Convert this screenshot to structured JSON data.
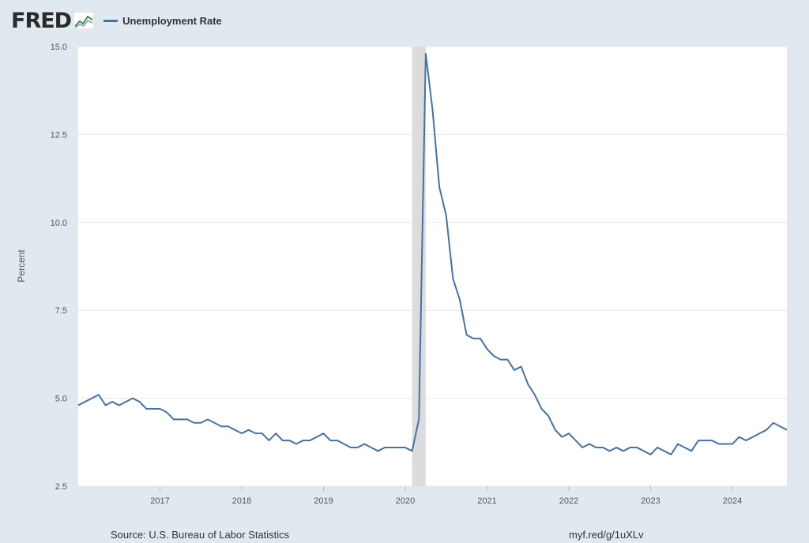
{
  "header": {
    "logo_text": "FRED",
    "legend_label": "Unemployment Rate"
  },
  "colors": {
    "series": "#4572a7",
    "recession": "#dcdcdc",
    "plot_bg": "#ffffff",
    "page_bg": "#e1e9f0",
    "grid": "#e6e6e6"
  },
  "footer": {
    "source": "Source: U.S. Bureau of Labor Statistics",
    "url": "myf.red/g/1uXLv"
  },
  "chart_data": {
    "type": "line",
    "title": "",
    "ylabel": "Percent",
    "xlabel": "",
    "ylim": [
      2.5,
      15.0
    ],
    "xlim": [
      "2016-01",
      "2024-09"
    ],
    "y_ticks": [
      "2.5",
      "5.0",
      "7.5",
      "10.0",
      "12.5",
      "15.0"
    ],
    "x_ticks": [
      "2017",
      "2018",
      "2019",
      "2020",
      "2021",
      "2022",
      "2023",
      "2024"
    ],
    "grid": true,
    "legend_position": "top-left",
    "recession": [
      "2020-02",
      "2020-04"
    ],
    "series": [
      {
        "name": "Unemployment Rate",
        "x": [
          "2016-01",
          "2016-02",
          "2016-03",
          "2016-04",
          "2016-05",
          "2016-06",
          "2016-07",
          "2016-08",
          "2016-09",
          "2016-10",
          "2016-11",
          "2016-12",
          "2017-01",
          "2017-02",
          "2017-03",
          "2017-04",
          "2017-05",
          "2017-06",
          "2017-07",
          "2017-08",
          "2017-09",
          "2017-10",
          "2017-11",
          "2017-12",
          "2018-01",
          "2018-02",
          "2018-03",
          "2018-04",
          "2018-05",
          "2018-06",
          "2018-07",
          "2018-08",
          "2018-09",
          "2018-10",
          "2018-11",
          "2018-12",
          "2019-01",
          "2019-02",
          "2019-03",
          "2019-04",
          "2019-05",
          "2019-06",
          "2019-07",
          "2019-08",
          "2019-09",
          "2019-10",
          "2019-11",
          "2019-12",
          "2020-01",
          "2020-02",
          "2020-03",
          "2020-04",
          "2020-05",
          "2020-06",
          "2020-07",
          "2020-08",
          "2020-09",
          "2020-10",
          "2020-11",
          "2020-12",
          "2021-01",
          "2021-02",
          "2021-03",
          "2021-04",
          "2021-05",
          "2021-06",
          "2021-07",
          "2021-08",
          "2021-09",
          "2021-10",
          "2021-11",
          "2021-12",
          "2022-01",
          "2022-02",
          "2022-03",
          "2022-04",
          "2022-05",
          "2022-06",
          "2022-07",
          "2022-08",
          "2022-09",
          "2022-10",
          "2022-11",
          "2022-12",
          "2023-01",
          "2023-02",
          "2023-03",
          "2023-04",
          "2023-05",
          "2023-06",
          "2023-07",
          "2023-08",
          "2023-09",
          "2023-10",
          "2023-11",
          "2023-12",
          "2024-01",
          "2024-02",
          "2024-03",
          "2024-04",
          "2024-05",
          "2024-06",
          "2024-07",
          "2024-08",
          "2024-09"
        ],
        "values": [
          4.8,
          4.9,
          5.0,
          5.1,
          4.8,
          4.9,
          4.8,
          4.9,
          5.0,
          4.9,
          4.7,
          4.7,
          4.7,
          4.6,
          4.4,
          4.4,
          4.4,
          4.3,
          4.3,
          4.4,
          4.3,
          4.2,
          4.2,
          4.1,
          4.0,
          4.1,
          4.0,
          4.0,
          3.8,
          4.0,
          3.8,
          3.8,
          3.7,
          3.8,
          3.8,
          3.9,
          4.0,
          3.8,
          3.8,
          3.7,
          3.6,
          3.6,
          3.7,
          3.6,
          3.5,
          3.6,
          3.6,
          3.6,
          3.6,
          3.5,
          4.4,
          14.8,
          13.2,
          11.0,
          10.2,
          8.4,
          7.8,
          6.8,
          6.7,
          6.7,
          6.4,
          6.2,
          6.1,
          6.1,
          5.8,
          5.9,
          5.4,
          5.1,
          4.7,
          4.5,
          4.1,
          3.9,
          4.0,
          3.8,
          3.6,
          3.7,
          3.6,
          3.6,
          3.5,
          3.6,
          3.5,
          3.6,
          3.6,
          3.5,
          3.4,
          3.6,
          3.5,
          3.4,
          3.7,
          3.6,
          3.5,
          3.8,
          3.8,
          3.8,
          3.7,
          3.7,
          3.7,
          3.9,
          3.8,
          3.9,
          4.0,
          4.1,
          4.3,
          4.2,
          4.1
        ]
      }
    ]
  }
}
